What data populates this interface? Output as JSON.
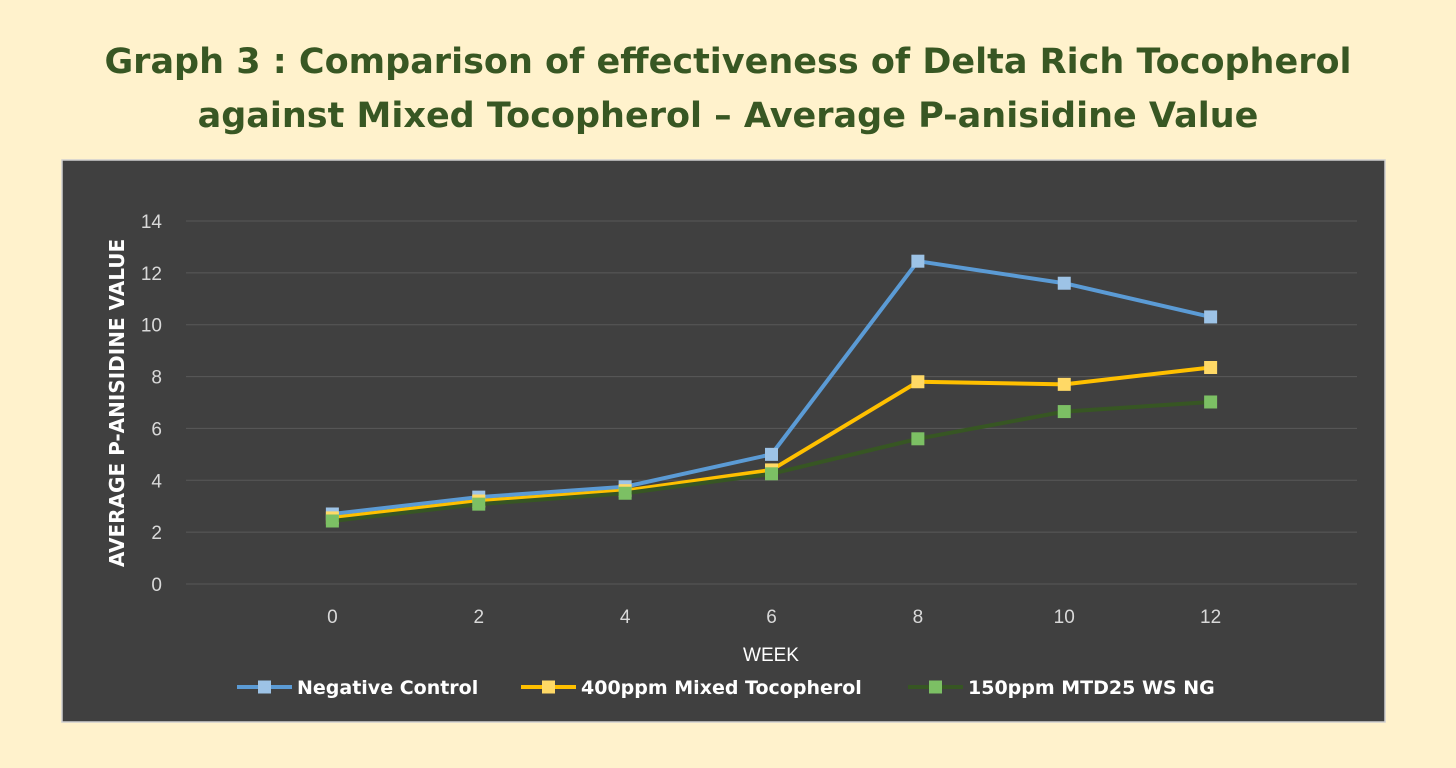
{
  "chart_data": {
    "type": "line",
    "title": [
      "Graph 3 : Comparison of effectiveness of Delta Rich Tocopherol",
      "against Mixed Tocopherol – Average P-anisidine Value"
    ],
    "xlabel": "WEEK",
    "ylabel": "AVERAGE P-ANISIDINE VALUE",
    "x": [
      0,
      2,
      4,
      6,
      8,
      10,
      12
    ],
    "x_ticks": [
      "0",
      "2",
      "4",
      "6",
      "8",
      "10",
      "12"
    ],
    "y_ticks": [
      "0",
      "2",
      "4",
      "6",
      "8",
      "10",
      "12",
      "14"
    ],
    "ylim": [
      0,
      14
    ],
    "grid": true,
    "legend_position": "bottom",
    "series": [
      {
        "name": "Negative Control",
        "color": "#5B9BD5",
        "marker_color": "#9DC3E6",
        "width": 4,
        "values": [
          2.7,
          3.35,
          3.75,
          5.0,
          12.45,
          11.6,
          10.3
        ]
      },
      {
        "name": "400ppm Mixed Tocopherol",
        "color": "#FFC000",
        "marker_color": "#FFD966",
        "width": 4,
        "values": [
          2.55,
          3.2,
          3.6,
          4.4,
          7.8,
          7.7,
          8.35
        ]
      },
      {
        "name": "150ppm MTD25 WS NG",
        "color": "#375623",
        "marker_color": "#7CC064",
        "width": 4,
        "values": [
          2.43,
          3.08,
          3.5,
          4.25,
          5.6,
          6.65,
          7.02
        ]
      }
    ]
  }
}
